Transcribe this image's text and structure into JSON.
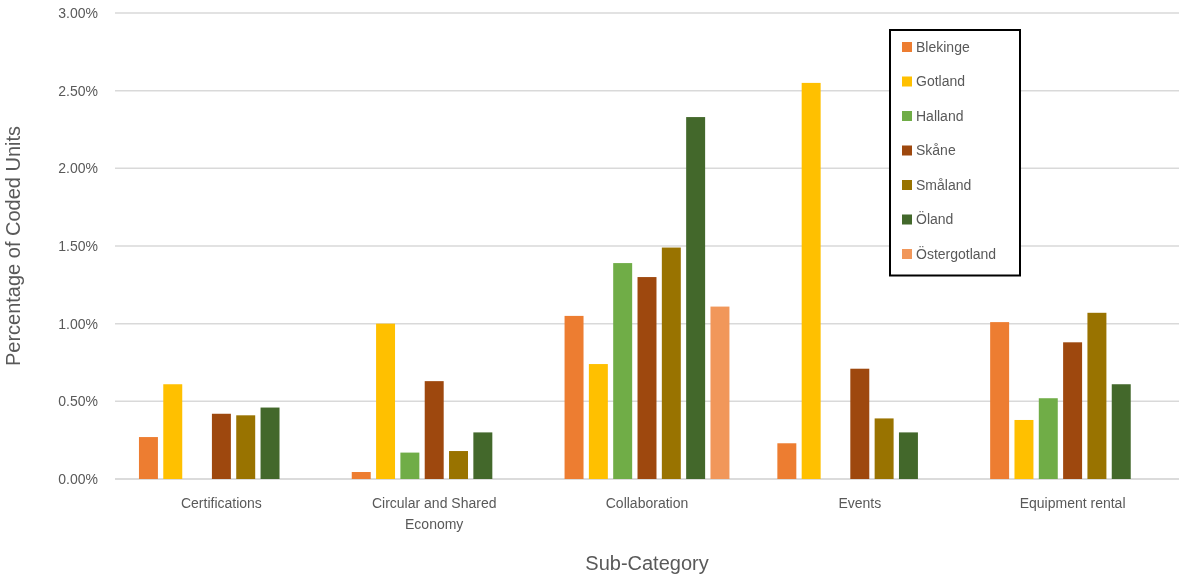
{
  "chart_data": {
    "type": "bar",
    "xlabel": "Sub-Category",
    "ylabel": "Percentage of Coded Units",
    "categories": [
      "Certifications",
      "Circular and Shared Economy",
      "Collaboration",
      "Events",
      "Equipment rental"
    ],
    "series": [
      {
        "name": "Blekinge",
        "color": "#ed7d31",
        "values": [
          0.27,
          0.045,
          1.05,
          0.23,
          1.01
        ]
      },
      {
        "name": "Gotland",
        "color": "#ffc000",
        "values": [
          0.61,
          1.0,
          0.74,
          2.55,
          0.38
        ]
      },
      {
        "name": "Halland",
        "color": "#70ad47",
        "values": [
          null,
          0.17,
          1.39,
          null,
          0.52
        ]
      },
      {
        "name": "Skåne",
        "color": "#9e480e",
        "values": [
          0.42,
          0.63,
          1.3,
          0.71,
          0.88
        ]
      },
      {
        "name": "Småland",
        "color": "#997300",
        "values": [
          0.41,
          0.18,
          1.49,
          0.39,
          1.07
        ]
      },
      {
        "name": "Öland",
        "color": "#43682b",
        "values": [
          0.46,
          0.3,
          2.33,
          0.3,
          0.61
        ]
      },
      {
        "name": "Östergotland",
        "color": "#f1975a",
        "values": [
          null,
          null,
          1.11,
          null,
          null
        ]
      }
    ],
    "ylim": [
      0,
      3
    ],
    "yticks": [
      {
        "value": 0,
        "label": "0.00%"
      },
      {
        "value": 0.5,
        "label": "0.50%"
      },
      {
        "value": 1,
        "label": "1.00%"
      },
      {
        "value": 1.5,
        "label": "1.50%"
      },
      {
        "value": 2,
        "label": "2.00%"
      },
      {
        "value": 2.5,
        "label": "2.50%"
      },
      {
        "value": 3,
        "label": "3.00%"
      }
    ],
    "grid": "y",
    "legend": "top right"
  }
}
